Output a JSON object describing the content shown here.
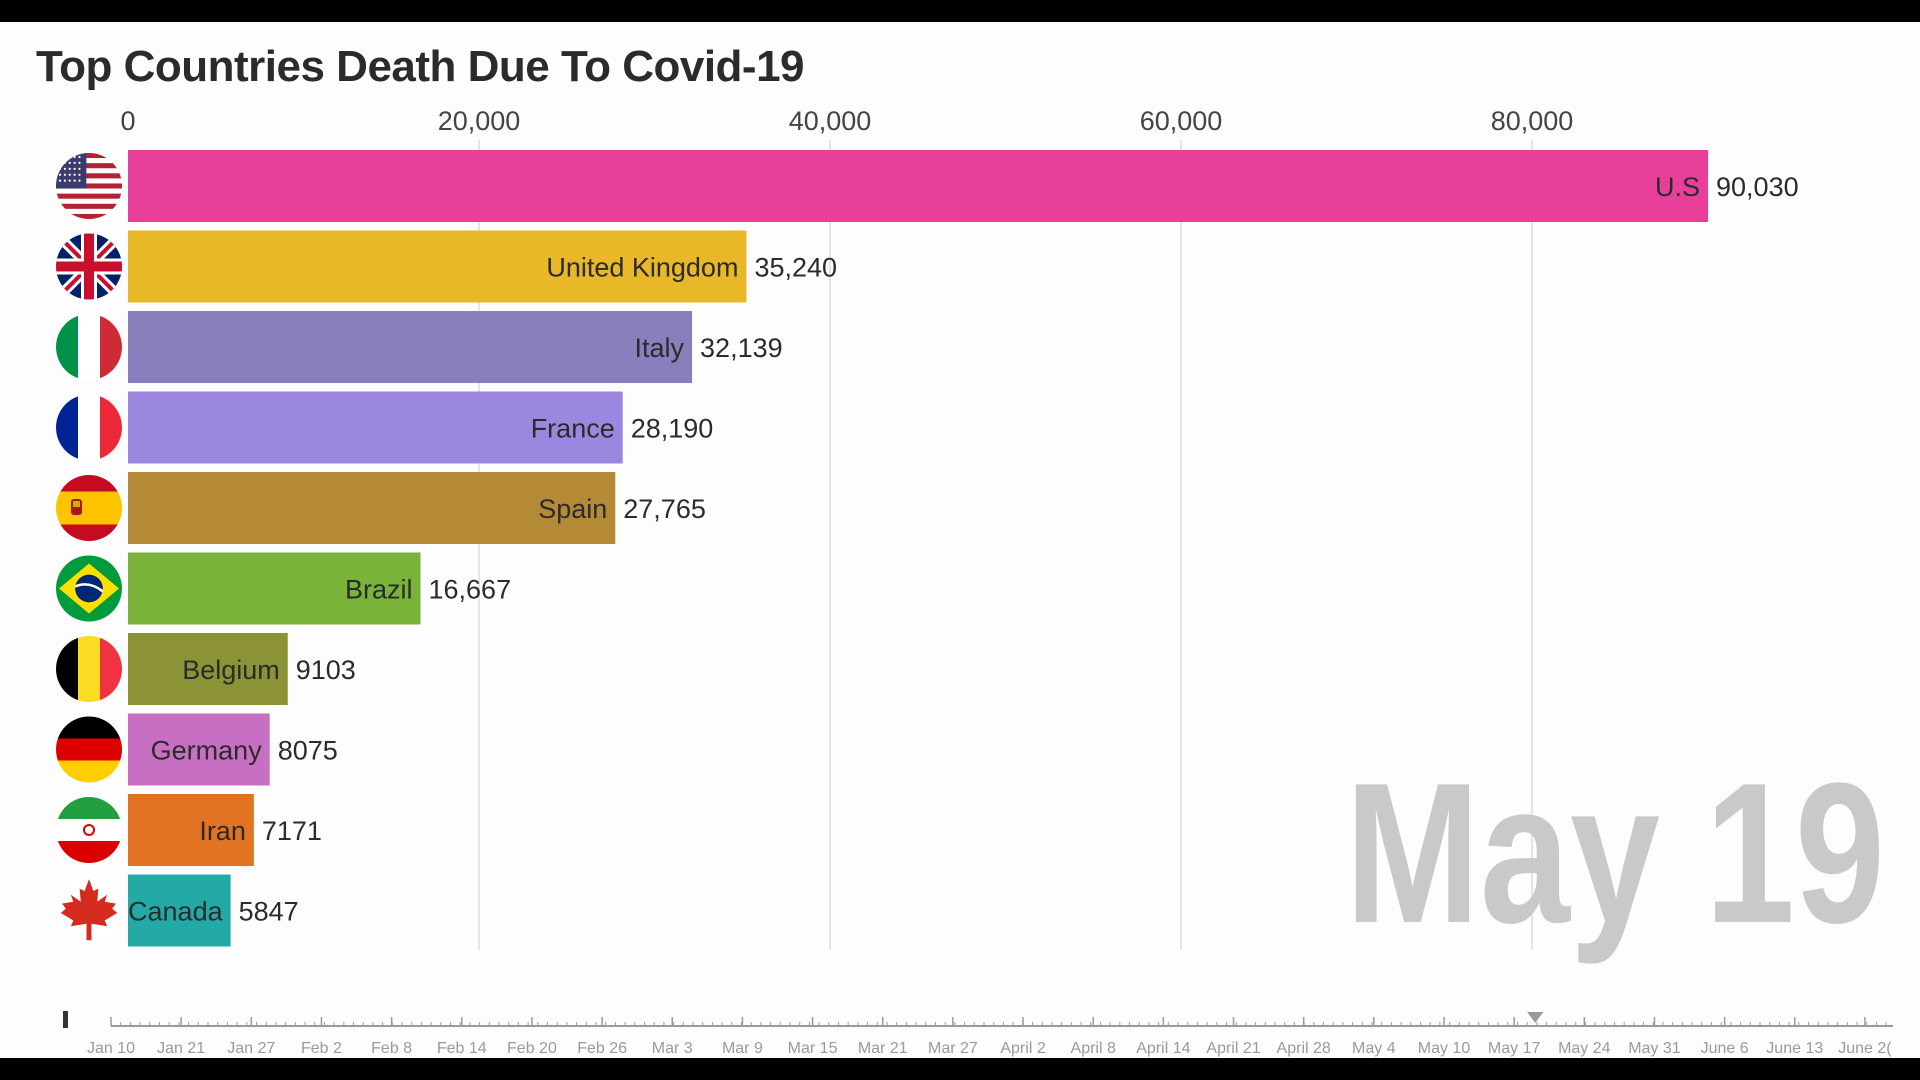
{
  "chart_data": {
    "type": "bar",
    "orientation": "horizontal",
    "title": "Top Countries Death Due To Covid-19",
    "date_label": "May 19",
    "xlabel": "",
    "ylabel": "",
    "xlim": [
      0,
      90000
    ],
    "x_ticks": [
      0,
      20000,
      40000,
      60000,
      80000
    ],
    "x_tick_labels": [
      "0",
      "20,000",
      "40,000",
      "60,000",
      "80,000"
    ],
    "grid": true,
    "bars": [
      {
        "name": "U.S",
        "value": 90030,
        "value_label": "90,030",
        "color": "#e8409a",
        "flag": "usa-flag-icon"
      },
      {
        "name": "United Kingdom",
        "value": 35240,
        "value_label": "35,240",
        "color": "#e8b829",
        "flag": "uk-flag-icon"
      },
      {
        "name": "Italy",
        "value": 32139,
        "value_label": "32,139",
        "color": "#8880bd",
        "flag": "italy-flag-icon"
      },
      {
        "name": "France",
        "value": 28190,
        "value_label": "28,190",
        "color": "#9b86e0",
        "flag": "france-flag-icon"
      },
      {
        "name": "Spain",
        "value": 27765,
        "value_label": "27,765",
        "color": "#b48a36",
        "flag": "spain-flag-icon"
      },
      {
        "name": "Brazil",
        "value": 16667,
        "value_label": "16,667",
        "color": "#7ab33a",
        "flag": "brazil-flag-icon"
      },
      {
        "name": "Belgium",
        "value": 9103,
        "value_label": "9103",
        "color": "#8c9336",
        "flag": "belgium-flag-icon"
      },
      {
        "name": "Germany",
        "value": 8075,
        "value_label": "8075",
        "color": "#c76fc2",
        "flag": "germany-flag-icon"
      },
      {
        "name": "Iran",
        "value": 7171,
        "value_label": "7171",
        "color": "#e27322",
        "flag": "iran-flag-icon"
      },
      {
        "name": "Canada",
        "value": 5847,
        "value_label": "5847",
        "color": "#23aaa6",
        "flag": "canada-flag-icon"
      }
    ]
  },
  "timeline": {
    "labels": [
      "Jan 10",
      "Jan 21",
      "Jan 27",
      "Feb 2",
      "Feb 8",
      "Feb 14",
      "Feb 20",
      "Feb 26",
      "Mar 3",
      "Mar 9",
      "Mar 15",
      "Mar 21",
      "Mar 27",
      "April 2",
      "April 8",
      "April 14",
      "April 21",
      "April 28",
      "May 4",
      "May 10",
      "May 17",
      "May 24",
      "May 31",
      "June 6",
      "June 13",
      "June 2("
    ],
    "current_index": 20.3,
    "current_label": "May 19"
  },
  "colors": {
    "title": "#2b2b2b",
    "axis_text": "#444444",
    "grid": "#dddddd",
    "date_watermark": "#c9c9c9",
    "timeline": "#9a9a9a"
  }
}
